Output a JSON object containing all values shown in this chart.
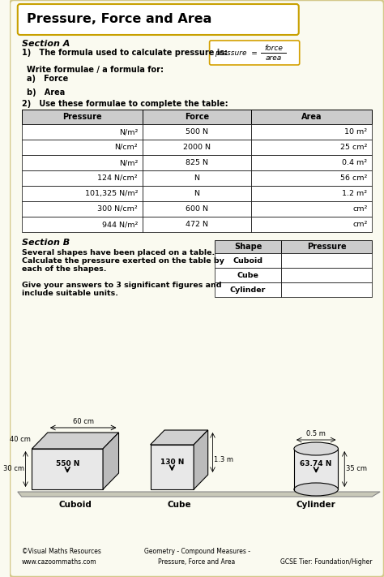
{
  "title": "Pressure, Force and Area",
  "bg_color": "#FAFAF0",
  "border_color": "#D4C88A",
  "header_bg": "#CCCCCC",
  "section_a_label": "Section A",
  "section_b_label": "Section B",
  "q1_text": "1)   The formula used to calculate pressure is:",
  "write_formulae": "Write formulae / a formula for:",
  "a_force": "a)   Force",
  "b_area": "b)   Area",
  "q2_text": "2)   Use these formulae to complete the table:",
  "table_headers": [
    "Pressure",
    "Force",
    "Area"
  ],
  "table_rows": [
    [
      "N/m²",
      "500 N",
      "10 m²"
    ],
    [
      "N/cm²",
      "2000 N",
      "25 cm²"
    ],
    [
      "N/m²",
      "825 N",
      "0.4 m²"
    ],
    [
      "124 N/cm²",
      "N",
      "56 cm²"
    ],
    [
      "101,325 N/m²",
      "N",
      "1.2 m²"
    ],
    [
      "300 N/cm²",
      "600 N",
      "cm²"
    ],
    [
      "944 N/m²",
      "472 N",
      "cm²"
    ]
  ],
  "section_b_text": [
    "Several shapes have been placed on a table.",
    "Calculate the pressure exerted on the table by",
    "each of the shapes.",
    "",
    "Give your answers to 3 significant figures and",
    "include suitable units."
  ],
  "shape_table_headers": [
    "Shape",
    "Pressure"
  ],
  "shape_table_rows": [
    "Cuboid",
    "Cube",
    "Cylinder"
  ],
  "footer_left": "©Visual Maths Resources\nwww.cazoommaths.com",
  "footer_center": "Geometry - Compound Measures -\nPressure, Force and Area",
  "footer_right": "GCSE Tier: Foundation/Higher"
}
